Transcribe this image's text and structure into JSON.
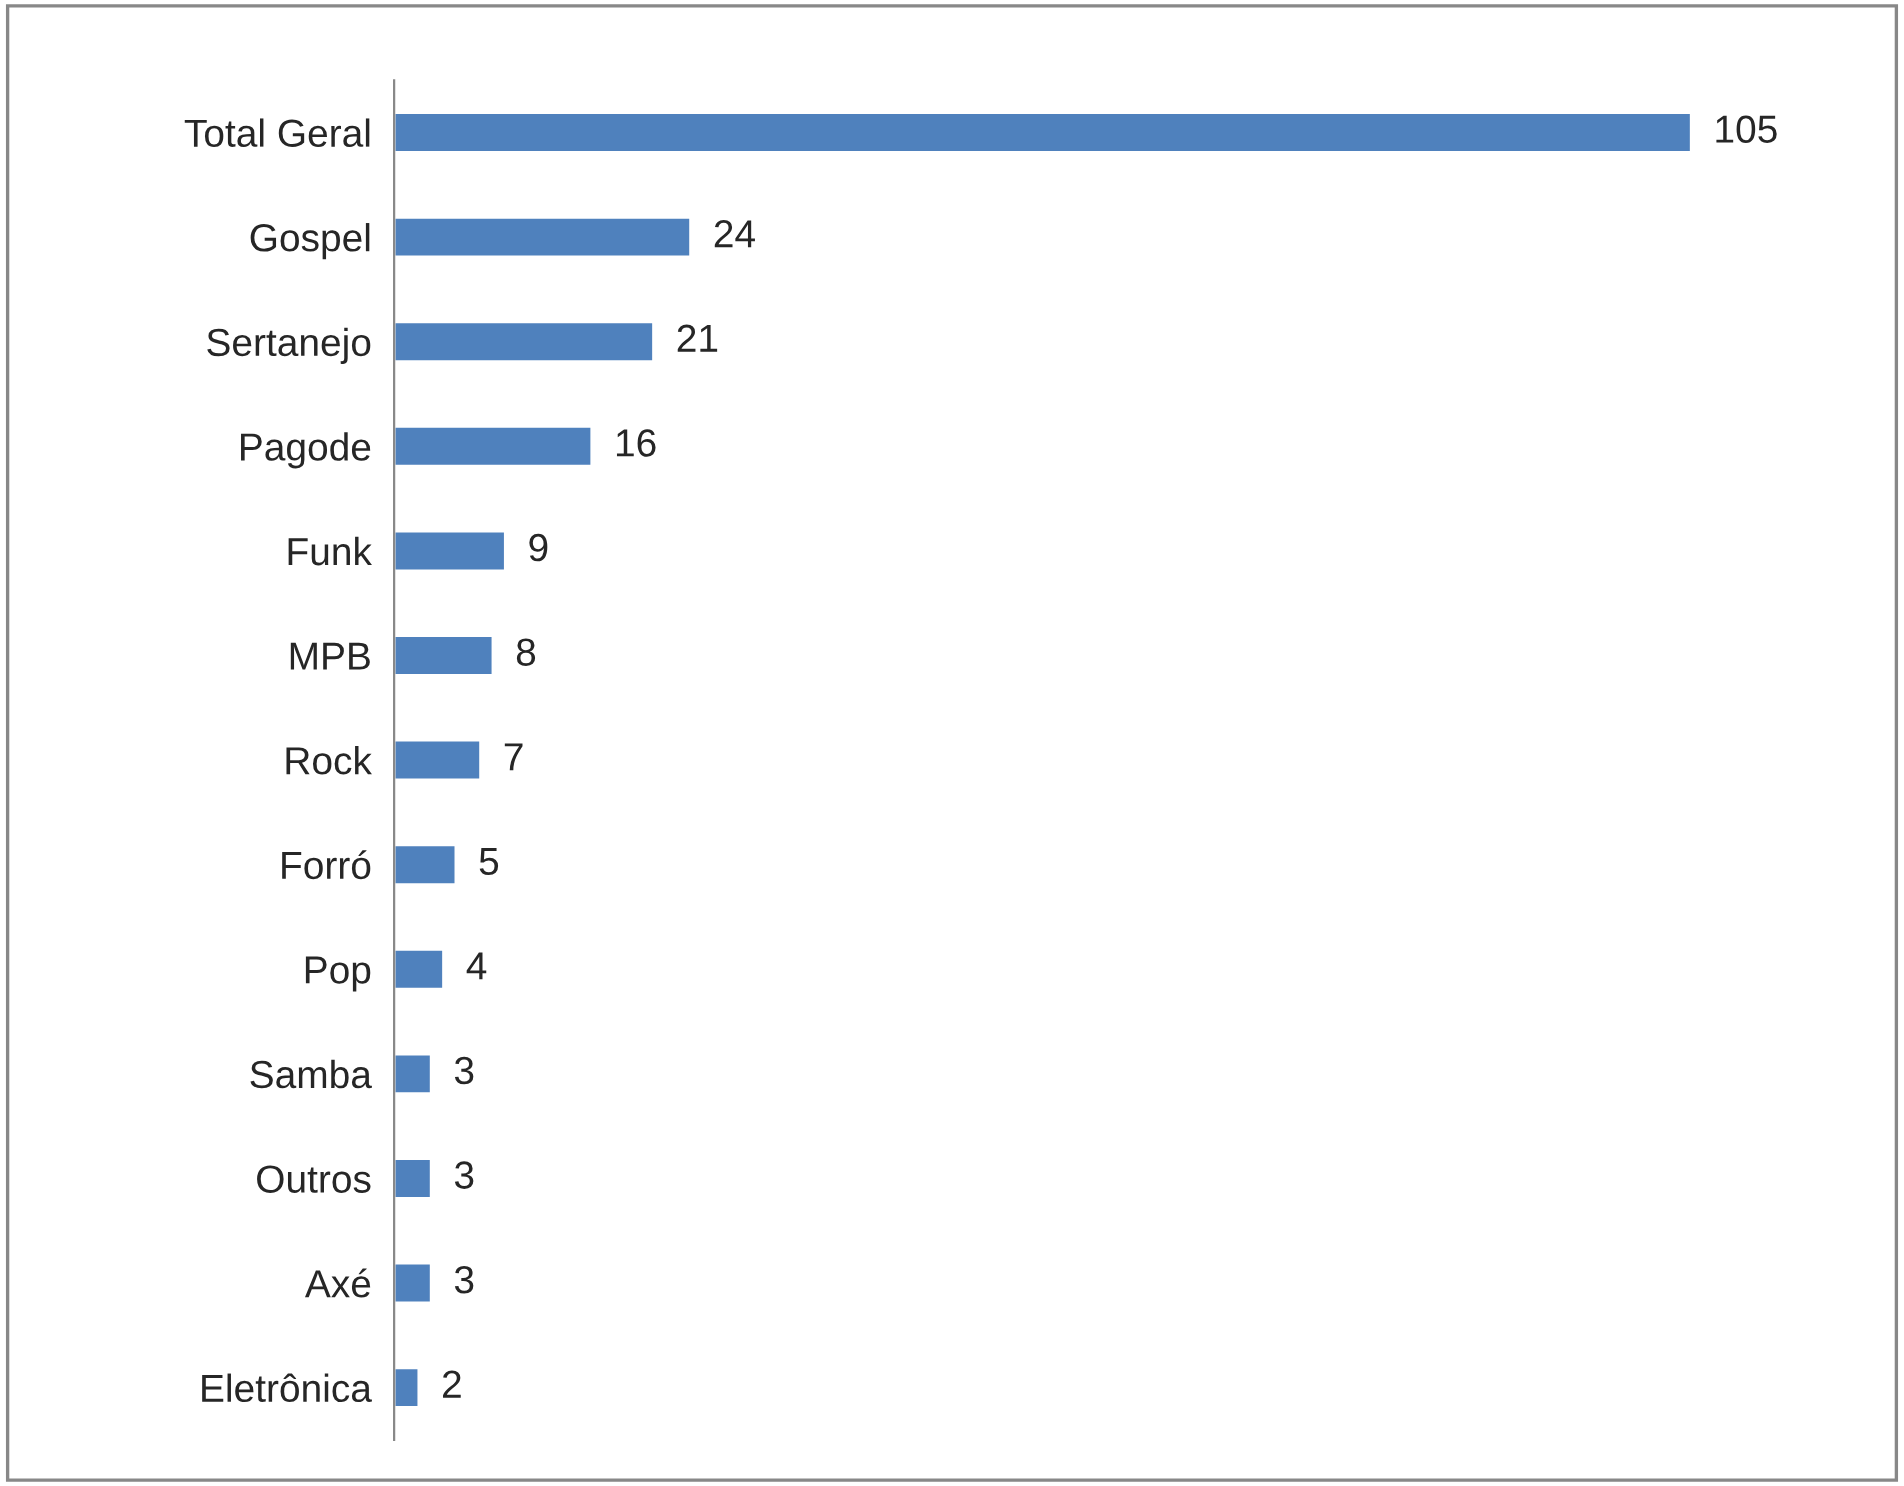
{
  "chart_data": {
    "type": "bar",
    "orientation": "horizontal",
    "data_labels": true,
    "color": "#4f81bd",
    "grid": false,
    "legend": false,
    "tick_labels": "y",
    "categories": [
      "Total Geral",
      "Gospel",
      "Sertanejo",
      "Pagode",
      "Funk",
      "MPB",
      "Rock",
      "Forró",
      "Pop",
      "Samba",
      "Outros",
      "Axé",
      "Eletrônica"
    ],
    "values": [
      105,
      24,
      21,
      16,
      9,
      8,
      7,
      5,
      4,
      3,
      3,
      3,
      2
    ]
  }
}
